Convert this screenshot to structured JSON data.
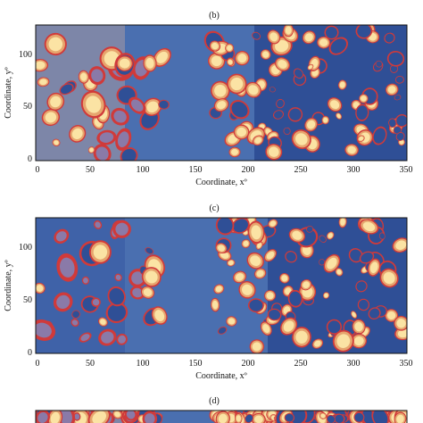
{
  "chart_data": [
    {
      "type": "heatmap",
      "panel": "(b)",
      "xlabel": "Coordinate, xº",
      "ylabel": "Coordinate, yº",
      "xlim": [
        0,
        350
      ],
      "ylim": [
        0,
        125
      ],
      "xticks": [
        "0",
        "50",
        "100",
        "150",
        "200",
        "250",
        "300",
        "350"
      ],
      "yticks": [
        "0",
        "50",
        "100"
      ],
      "colors": {
        "background": "#4a6fb0",
        "dense": "#2f4f96",
        "contour": "#d03a3a",
        "peak": "#fbe3a4",
        "mid": "#e6a56e"
      }
    },
    {
      "type": "heatmap",
      "panel": "(c)",
      "xlabel": "Coordinate, xº",
      "ylabel": "Coordinate, yº",
      "xlim": [
        0,
        350
      ],
      "ylim": [
        0,
        125
      ],
      "xticks": [
        "0",
        "50",
        "100",
        "150",
        "200",
        "250",
        "300",
        "350"
      ],
      "yticks": [
        "0",
        "50",
        "100"
      ],
      "colors": {
        "background": "#4a6fb0",
        "dense": "#2f4f96",
        "contour": "#d03a3a",
        "peak": "#fbe3a4",
        "mid": "#e6a56e"
      }
    },
    {
      "type": "heatmap",
      "panel": "(d)",
      "xlabel": "",
      "ylabel": "",
      "colors": {
        "background": "#4a6fb0",
        "dense": "#2f4f96",
        "contour": "#d03a3a",
        "peak": "#fbe3a4",
        "mid": "#e6a56e"
      }
    }
  ]
}
